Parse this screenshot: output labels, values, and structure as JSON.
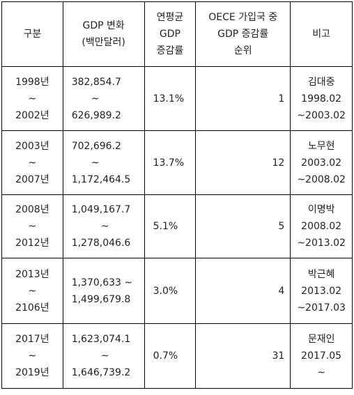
{
  "headers": {
    "period": "구분",
    "gdp": [
      "GDP 변화",
      "(백만달러)"
    ],
    "rate": [
      "연평균",
      "GDP",
      "증감률"
    ],
    "rank": [
      "OECE 가입국 중",
      "GDP 증감률",
      "순위"
    ],
    "note": "비고"
  },
  "rows": [
    {
      "period": [
        "1998년",
        "~",
        "2002년"
      ],
      "gdp": [
        "382,854.7",
        "~",
        "626,989.2"
      ],
      "rate": "13.1%",
      "rank": "1",
      "note": [
        "김대중",
        "1998.02",
        "~2003.02"
      ]
    },
    {
      "period": [
        "2003년",
        "~",
        "2007년"
      ],
      "gdp": [
        "702,696.2",
        "~",
        "1,172,464.5"
      ],
      "rate": "13.7%",
      "rank": "12",
      "note": [
        "노무현",
        "2003.02",
        "~2008.02"
      ]
    },
    {
      "period": [
        "2008년",
        "~",
        "2012년"
      ],
      "gdp": [
        "1,049,167.7",
        "~",
        "1,278,046.6"
      ],
      "rate": "5.1%",
      "rank": "5",
      "note": [
        "이명박",
        "2008.02",
        "~2013.02"
      ]
    },
    {
      "period": [
        "2013년",
        "~",
        "2106년"
      ],
      "gdp": [
        "1,370,633 ~",
        "1,499,679.8"
      ],
      "rate": "3.0%",
      "rank": "4",
      "note": [
        "박근혜",
        "2013.02",
        "~2017.03"
      ]
    },
    {
      "period": [
        "2017년",
        "~",
        "2019년"
      ],
      "gdp": [
        "1,623,074.1",
        "~",
        "1,646,739.2"
      ],
      "rate": "0.7%",
      "rank": "31",
      "note": [
        "문재인",
        "2017.05",
        "~"
      ]
    }
  ]
}
